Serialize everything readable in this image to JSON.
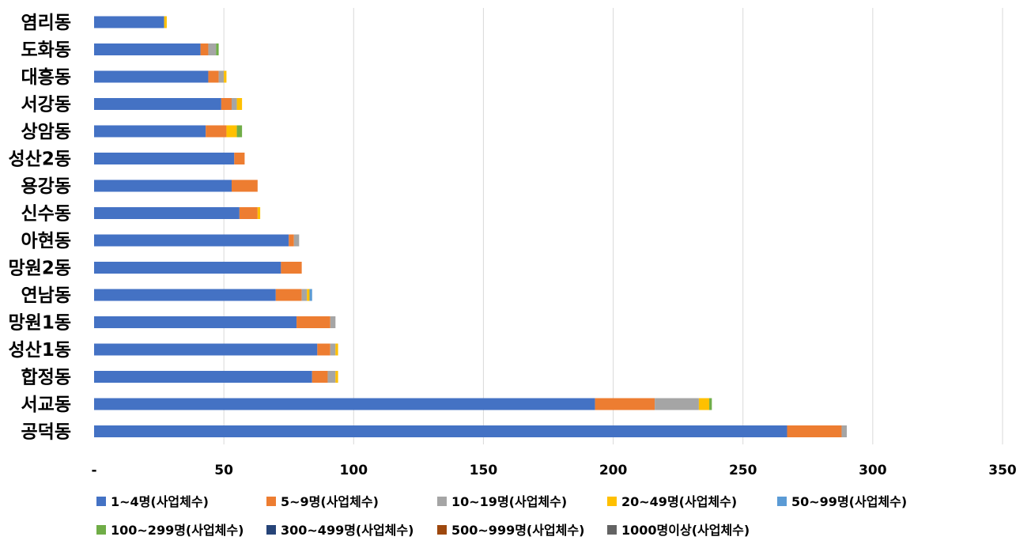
{
  "chart_data": {
    "type": "bar",
    "orientation": "horizontal",
    "stacked": true,
    "title": "",
    "xlabel": "",
    "ylabel": "",
    "xlim": [
      0,
      350
    ],
    "x_ticks": [
      0,
      50,
      100,
      150,
      200,
      250,
      300,
      350
    ],
    "x_tick_labels": [
      "-",
      "50",
      "100",
      "150",
      "200",
      "250",
      "300",
      "350"
    ],
    "grid": true,
    "legend_position": "bottom",
    "categories": [
      "염리동",
      "도화동",
      "대흥동",
      "서강동",
      "상암동",
      "성산2동",
      "용강동",
      "신수동",
      "아현동",
      "망원2동",
      "연남동",
      "망원1동",
      "성산1동",
      "합정동",
      "서교동",
      "공덕동"
    ],
    "series": [
      {
        "name": "1~4명(사업체수)",
        "color": "#4472c4",
        "values": [
          27,
          41,
          44,
          49,
          43,
          54,
          53,
          56,
          75,
          72,
          70,
          78,
          86,
          84,
          193,
          267
        ]
      },
      {
        "name": "5~9명(사업체수)",
        "color": "#ed7d31",
        "values": [
          0,
          3,
          4,
          4,
          8,
          4,
          10,
          7,
          2,
          8,
          10,
          13,
          5,
          6,
          23,
          21
        ]
      },
      {
        "name": "10~19명(사업체수)",
        "color": "#a5a5a5",
        "values": [
          0,
          3,
          2,
          2,
          0,
          0,
          0,
          0,
          2,
          0,
          2,
          2,
          2,
          3,
          17,
          2
        ]
      },
      {
        "name": "20~49명(사업체수)",
        "color": "#ffc000",
        "values": [
          1,
          0,
          1,
          2,
          4,
          0,
          0,
          1,
          0,
          0,
          1,
          0,
          1,
          1,
          4,
          0
        ]
      },
      {
        "name": "50~99명(사업체수)",
        "color": "#5b9bd5",
        "values": [
          0,
          0,
          0,
          0,
          0,
          0,
          0,
          0,
          0,
          0,
          1,
          0,
          0,
          0,
          0,
          0
        ]
      },
      {
        "name": "100~299명(사업체수)",
        "color": "#70ad47",
        "values": [
          0,
          1,
          0,
          0,
          2,
          0,
          0,
          0,
          0,
          0,
          0,
          0,
          0,
          0,
          1,
          0
        ]
      },
      {
        "name": "300~499명(사업체수)",
        "color": "#264478",
        "values": [
          0,
          0,
          0,
          0,
          0,
          0,
          0,
          0,
          0,
          0,
          0,
          0,
          0,
          0,
          0,
          0
        ]
      },
      {
        "name": "500~999명(사업체수)",
        "color": "#9e480e",
        "values": [
          0,
          0,
          0,
          0,
          0,
          0,
          0,
          0,
          0,
          0,
          0,
          0,
          0,
          0,
          0,
          0
        ]
      },
      {
        "name": "1000명이상(사업체수)",
        "color": "#636363",
        "values": [
          0,
          0,
          0,
          0,
          0,
          0,
          0,
          0,
          0,
          0,
          0,
          0,
          0,
          0,
          0,
          0
        ]
      }
    ]
  }
}
